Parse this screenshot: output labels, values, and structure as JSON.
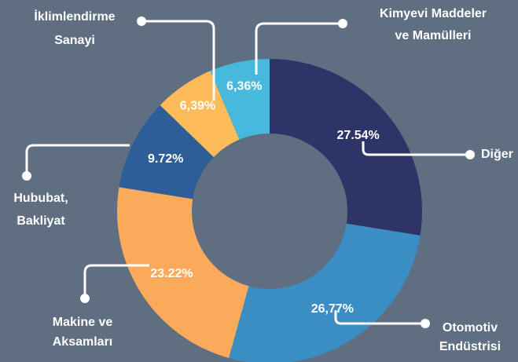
{
  "chart_data": {
    "type": "donut",
    "categories": [
      [
        "Diğer"
      ],
      [
        "Otomotiv",
        "Endüstrisi"
      ],
      [
        "Makine ve",
        "Aksamları"
      ],
      [
        "Hububat,",
        "Bakliyat"
      ],
      [
        "İklimlendirme",
        "Sanayi"
      ],
      [
        "Kimyevi Maddeler",
        "ve Mamülleri"
      ]
    ],
    "values": [
      27.54,
      26.77,
      23.22,
      9.72,
      6.39,
      6.36
    ],
    "value_labels": [
      "27.54%",
      "26,77%",
      "23.22%",
      "9.72%",
      "6,39%",
      "6,36%"
    ],
    "colors": [
      "#2f3468",
      "#3a8ec3",
      "#fba95a",
      "#2e5e98",
      "#fdbb5a",
      "#46b9dc"
    ]
  }
}
